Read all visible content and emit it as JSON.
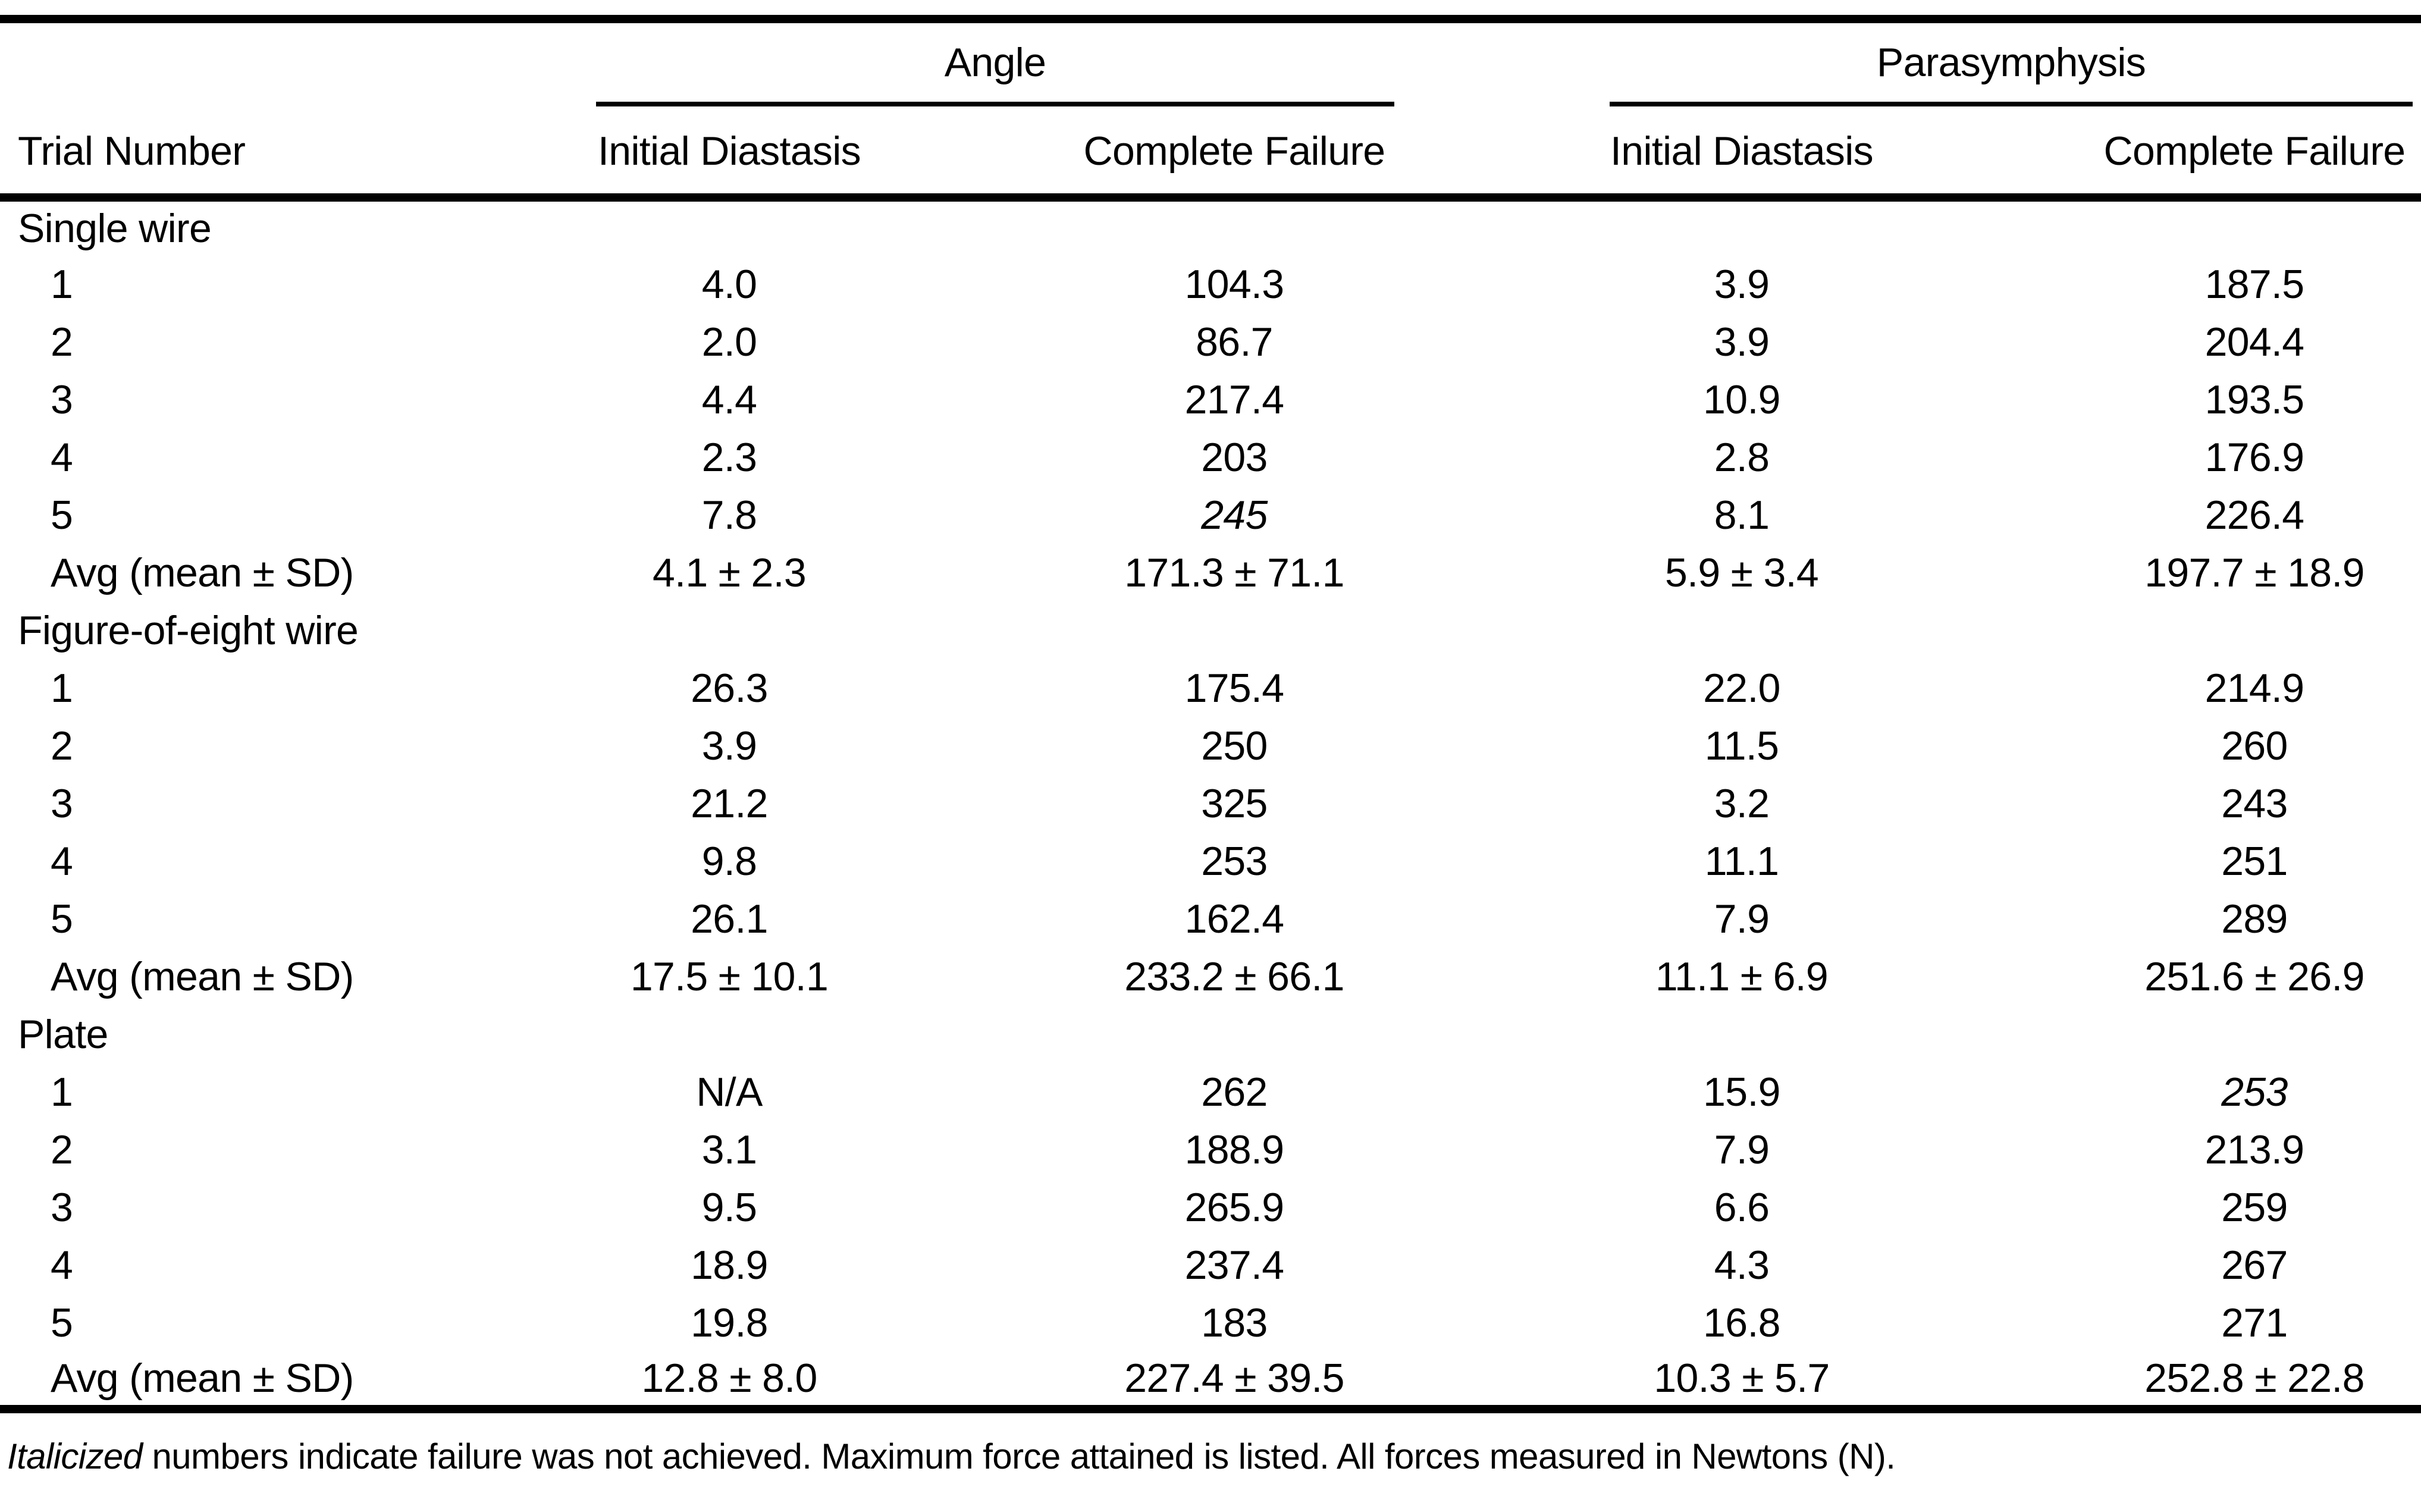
{
  "page": {
    "background": "#ffffff",
    "text_color": "#000000"
  },
  "table": {
    "row_header": "Trial Number",
    "groups": [
      {
        "label": "Angle",
        "columns": [
          "Initial Diastasis",
          "Complete Failure"
        ]
      },
      {
        "label": "Parasymphysis",
        "columns": [
          "Initial Diastasis",
          "Complete Failure"
        ]
      }
    ],
    "sections": [
      {
        "label": "Single wire",
        "rows": [
          {
            "trial": "1",
            "cells": [
              {
                "v": "4.0"
              },
              {
                "v": "104.3"
              },
              {
                "v": "3.9"
              },
              {
                "v": "187.5"
              }
            ]
          },
          {
            "trial": "2",
            "cells": [
              {
                "v": "2.0"
              },
              {
                "v": "86.7"
              },
              {
                "v": "3.9"
              },
              {
                "v": "204.4"
              }
            ]
          },
          {
            "trial": "3",
            "cells": [
              {
                "v": "4.4"
              },
              {
                "v": "217.4"
              },
              {
                "v": "10.9"
              },
              {
                "v": "193.5"
              }
            ]
          },
          {
            "trial": "4",
            "cells": [
              {
                "v": "2.3"
              },
              {
                "v": "203"
              },
              {
                "v": "2.8"
              },
              {
                "v": "176.9"
              }
            ]
          },
          {
            "trial": "5",
            "cells": [
              {
                "v": "7.8"
              },
              {
                "v": "245",
                "italic": true
              },
              {
                "v": "8.1"
              },
              {
                "v": "226.4"
              }
            ]
          },
          {
            "trial": "Avg (mean ± SD)",
            "cells": [
              {
                "v": "4.1 ± 2.3"
              },
              {
                "v": "171.3 ± 71.1"
              },
              {
                "v": "5.9 ± 3.4"
              },
              {
                "v": "197.7 ± 18.9"
              }
            ]
          }
        ]
      },
      {
        "label": "Figure-of-eight wire",
        "rows": [
          {
            "trial": "1",
            "cells": [
              {
                "v": "26.3"
              },
              {
                "v": "175.4"
              },
              {
                "v": "22.0"
              },
              {
                "v": "214.9"
              }
            ]
          },
          {
            "trial": "2",
            "cells": [
              {
                "v": "3.9"
              },
              {
                "v": "250"
              },
              {
                "v": "11.5"
              },
              {
                "v": "260"
              }
            ]
          },
          {
            "trial": "3",
            "cells": [
              {
                "v": "21.2"
              },
              {
                "v": "325"
              },
              {
                "v": "3.2"
              },
              {
                "v": "243"
              }
            ]
          },
          {
            "trial": "4",
            "cells": [
              {
                "v": "9.8"
              },
              {
                "v": "253"
              },
              {
                "v": "11.1"
              },
              {
                "v": "251"
              }
            ]
          },
          {
            "trial": "5",
            "cells": [
              {
                "v": "26.1"
              },
              {
                "v": "162.4"
              },
              {
                "v": "7.9"
              },
              {
                "v": "289"
              }
            ]
          },
          {
            "trial": "Avg (mean ± SD)",
            "cells": [
              {
                "v": "17.5 ± 10.1"
              },
              {
                "v": "233.2 ± 66.1"
              },
              {
                "v": "11.1 ± 6.9"
              },
              {
                "v": "251.6 ± 26.9"
              }
            ]
          }
        ]
      },
      {
        "label": "Plate",
        "rows": [
          {
            "trial": "1",
            "cells": [
              {
                "v": "N/A"
              },
              {
                "v": "262"
              },
              {
                "v": "15.9"
              },
              {
                "v": "253",
                "italic": true
              }
            ]
          },
          {
            "trial": "2",
            "cells": [
              {
                "v": "3.1"
              },
              {
                "v": "188.9"
              },
              {
                "v": "7.9"
              },
              {
                "v": "213.9"
              }
            ]
          },
          {
            "trial": "3",
            "cells": [
              {
                "v": "9.5"
              },
              {
                "v": "265.9"
              },
              {
                "v": "6.6"
              },
              {
                "v": "259"
              }
            ]
          },
          {
            "trial": "4",
            "cells": [
              {
                "v": "18.9"
              },
              {
                "v": "237.4"
              },
              {
                "v": "4.3"
              },
              {
                "v": "267"
              }
            ]
          },
          {
            "trial": "5",
            "cells": [
              {
                "v": "19.8"
              },
              {
                "v": "183"
              },
              {
                "v": "16.8"
              },
              {
                "v": "271"
              }
            ]
          },
          {
            "trial": "Avg (mean ± SD)",
            "cells": [
              {
                "v": "12.8 ± 8.0"
              },
              {
                "v": "227.4 ± 39.5"
              },
              {
                "v": "10.3 ± 5.7"
              },
              {
                "v": "252.8 ± 22.8"
              }
            ]
          }
        ]
      }
    ],
    "footnote": {
      "italic_lead": "Italicized",
      "rest": " numbers indicate failure was not achieved. Maximum force attained is listed. All forces measured in Newtons (N)."
    }
  }
}
